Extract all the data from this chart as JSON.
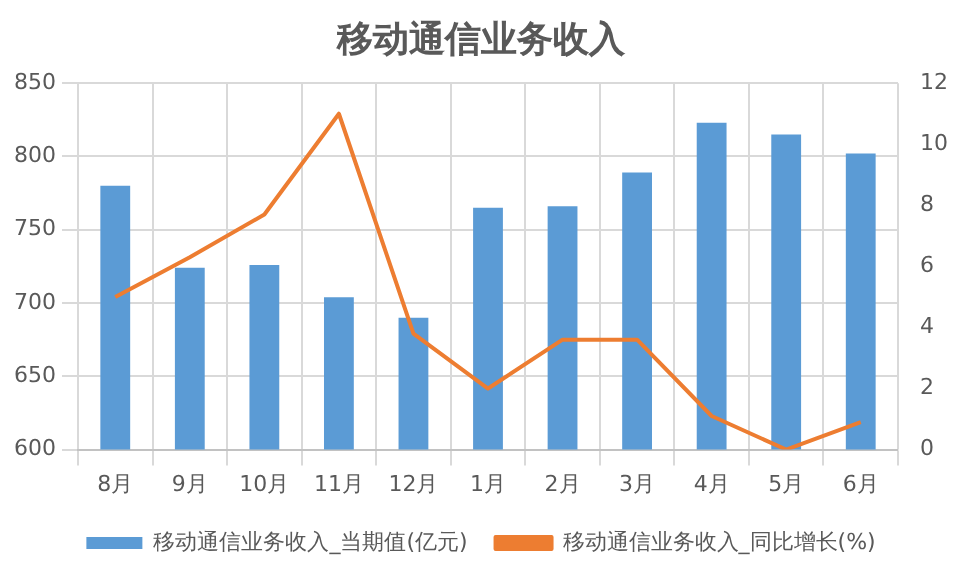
{
  "chart_data": {
    "type": "bar",
    "title": "移动通信业务收入",
    "categories": [
      "8月",
      "9月",
      "10月",
      "11月",
      "12月",
      "1月",
      "2月",
      "3月",
      "4月",
      "5月",
      "6月"
    ],
    "series": [
      {
        "name": "移动通信业务收入_当期值(亿元)",
        "color": "#5b9bd5",
        "values": [
          780,
          724,
          726,
          704,
          690,
          765,
          766,
          789,
          823,
          815,
          802
        ]
      },
      {
        "name": "移动通信业务收入_同比增长(%)",
        "type": "line",
        "axis": "y2",
        "color": "#ed7d31",
        "values": [
          5.0,
          6.3,
          7.7,
          11.0,
          3.8,
          2.0,
          3.6,
          3.6,
          1.1,
          0.0,
          0.9
        ]
      }
    ],
    "ylim": [
      600,
      850
    ],
    "yticks": [
      600,
      650,
      700,
      750,
      800,
      850
    ],
    "y2lim": [
      0,
      12
    ],
    "y2ticks": [
      0,
      2,
      4,
      6,
      8,
      10,
      12
    ],
    "grid": true,
    "legend": "bottom",
    "marker": "none",
    "line_style": "solid"
  }
}
